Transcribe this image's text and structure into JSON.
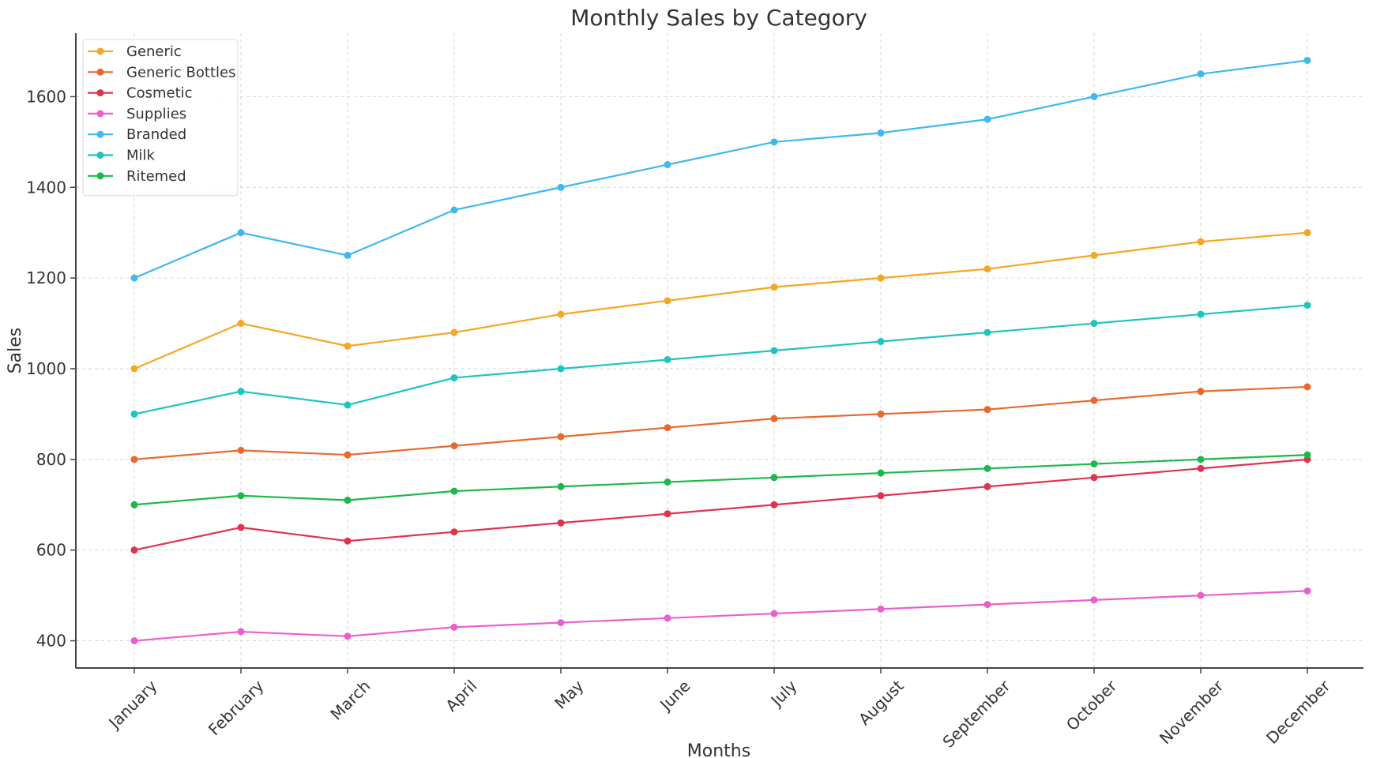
{
  "chart_data": {
    "type": "line",
    "title": "Monthly Sales by Category",
    "xlabel": "Months",
    "ylabel": "Sales",
    "categories": [
      "January",
      "February",
      "March",
      "April",
      "May",
      "June",
      "July",
      "August",
      "September",
      "October",
      "November",
      "December"
    ],
    "yticks": [
      400,
      600,
      800,
      1000,
      1200,
      1400,
      1600
    ],
    "ylim": [
      340,
      1740
    ],
    "grid": true,
    "legend_position": "top-left",
    "series": [
      {
        "name": "Generic",
        "color": "#f5a623",
        "values": [
          1000,
          1100,
          1050,
          1080,
          1120,
          1150,
          1180,
          1200,
          1220,
          1250,
          1280,
          1300
        ]
      },
      {
        "name": "Generic Bottles",
        "color": "#e8692e",
        "values": [
          800,
          820,
          810,
          830,
          850,
          870,
          890,
          900,
          910,
          930,
          950,
          960
        ]
      },
      {
        "name": "Cosmetic",
        "color": "#e0334d",
        "values": [
          600,
          650,
          620,
          640,
          660,
          680,
          700,
          720,
          740,
          760,
          780,
          800
        ]
      },
      {
        "name": "Supplies",
        "color": "#ea5fd0",
        "values": [
          400,
          420,
          410,
          430,
          440,
          450,
          460,
          470,
          480,
          490,
          500,
          510
        ]
      },
      {
        "name": "Branded",
        "color": "#3fb7f0",
        "values": [
          1200,
          1300,
          1250,
          1350,
          1400,
          1450,
          1500,
          1520,
          1550,
          1600,
          1650,
          1680
        ]
      },
      {
        "name": "Milk",
        "color": "#1fc4c0",
        "values": [
          900,
          950,
          920,
          980,
          1000,
          1020,
          1040,
          1060,
          1080,
          1100,
          1120,
          1140
        ]
      },
      {
        "name": "Ritemed",
        "color": "#1cb94a",
        "values": [
          700,
          720,
          710,
          730,
          740,
          750,
          760,
          770,
          780,
          790,
          800,
          810
        ]
      }
    ]
  }
}
